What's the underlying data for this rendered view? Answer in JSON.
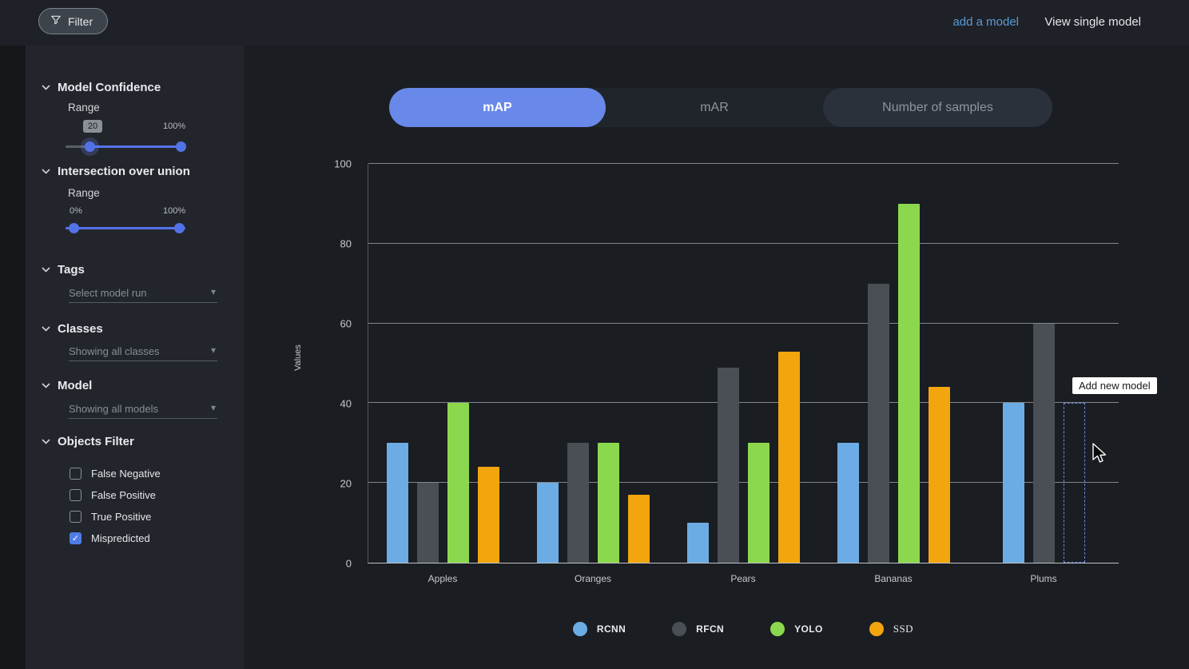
{
  "topbar": {
    "filter_label": "Filter",
    "add_model_link": "add a model",
    "view_single_model_link": "View single model"
  },
  "sidebar": {
    "sections": {
      "model_confidence": {
        "title": "Model Confidence",
        "range_label": "Range",
        "min_value": "20",
        "max_value": "100%"
      },
      "iou": {
        "title": "Intersection over union",
        "range_label": "Range",
        "min_label": "0%",
        "max_label": "100%"
      },
      "tags": {
        "title": "Tags",
        "placeholder": "Select model run"
      },
      "classes": {
        "title": "Classes",
        "placeholder": "Showing all classes"
      },
      "model": {
        "title": "Model",
        "placeholder": "Showing all models"
      },
      "objects_filter": {
        "title": "Objects Filter",
        "options": [
          {
            "label": "False Negative",
            "checked": false
          },
          {
            "label": "False Positive",
            "checked": false
          },
          {
            "label": "True Positive",
            "checked": false
          },
          {
            "label": "Mispredicted",
            "checked": true
          }
        ]
      }
    }
  },
  "tabs": [
    {
      "label": "mAP",
      "active": true
    },
    {
      "label": "mAR",
      "active": false
    },
    {
      "label": "Number of samples",
      "active": false
    }
  ],
  "tooltip": {
    "text": "Add new model"
  },
  "chart_data": {
    "type": "bar",
    "title": "",
    "xlabel": "",
    "ylabel": "Values",
    "ylim": [
      0,
      100
    ],
    "yticks": [
      0,
      20,
      40,
      60,
      80,
      100
    ],
    "grid": true,
    "legend_position": "bottom",
    "categories": [
      "Apples",
      "Oranges",
      "Pears",
      "Bananas",
      "Plums"
    ],
    "series": [
      {
        "name": "RCNN",
        "color": "#6CACE4",
        "values": [
          30,
          20,
          10,
          30,
          40
        ]
      },
      {
        "name": "RFCN",
        "color": "#4A4E55",
        "values": [
          20,
          30,
          49,
          70,
          60
        ]
      },
      {
        "name": "YOLO",
        "color": "#8BD84E",
        "values": [
          40,
          30,
          30,
          90,
          null
        ]
      },
      {
        "name": "SSD",
        "color": "#F2A50C",
        "values": [
          24,
          17,
          53,
          44,
          null
        ]
      }
    ],
    "placeholder_bar": {
      "category": "Plums",
      "value": 40,
      "label": "Add new model"
    }
  }
}
